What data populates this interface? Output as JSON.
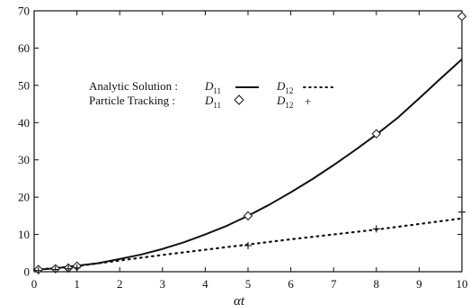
{
  "chart_data": {
    "type": "line",
    "xlabel": "αt",
    "xlim": [
      0,
      10
    ],
    "ylim": [
      0,
      70
    ],
    "xticks": [
      0,
      1,
      2,
      3,
      4,
      5,
      6,
      7,
      8,
      9,
      10
    ],
    "yticks": [
      0,
      10,
      20,
      30,
      40,
      50,
      60,
      70
    ],
    "grid": false,
    "legend_position": "upper-left",
    "legend": {
      "row1_label": "Analytic Solution :",
      "row2_label": "Particle  Tracking :",
      "d11_symbol": "D",
      "d11_sub": "11",
      "d12_symbol": "D",
      "d12_sub": "12",
      "d12_markers_suffix": "+"
    },
    "series": [
      {
        "name": "D11 analytic",
        "style": "solid",
        "color": "#111111",
        "x": [
          0,
          0.5,
          1,
          1.5,
          2,
          2.5,
          3,
          3.5,
          4,
          4.5,
          5,
          5.5,
          6,
          6.5,
          7,
          7.5,
          8,
          8.5,
          9,
          9.5,
          10
        ],
        "y": [
          0.5,
          0.9,
          1.6,
          2.3,
          3.4,
          4.6,
          6.1,
          7.9,
          10.0,
          12.3,
          15.0,
          18.0,
          21.3,
          24.8,
          28.6,
          32.6,
          36.8,
          41.3,
          46.5,
          51.8,
          57.0
        ]
      },
      {
        "name": "D12 analytic",
        "style": "dotted",
        "color": "#111111",
        "x": [
          0,
          1,
          2,
          3,
          4,
          5,
          6,
          7,
          8,
          9,
          10
        ],
        "y": [
          0.5,
          1.5,
          3.0,
          4.5,
          5.9,
          7.3,
          8.7,
          10.0,
          11.3,
          12.8,
          14.3
        ]
      },
      {
        "name": "D11 particle tracking",
        "marker": "diamond",
        "color": "#111111",
        "x": [
          0.1,
          0.5,
          0.8,
          1.0,
          5.0,
          8.0,
          10.0
        ],
        "y": [
          0.6,
          0.8,
          1.0,
          1.5,
          15.0,
          37.0,
          68.5
        ]
      },
      {
        "name": "D12 particle tracking",
        "marker": "plus",
        "color": "#111111",
        "x": [
          0.1,
          0.5,
          0.8,
          1.0,
          5.0,
          8.0,
          10.0
        ],
        "y": [
          0.3,
          0.6,
          0.8,
          1.0,
          7.0,
          11.5,
          16.0
        ]
      }
    ]
  }
}
